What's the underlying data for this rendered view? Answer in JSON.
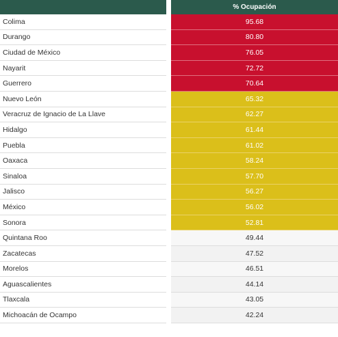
{
  "header": {
    "left_label": "",
    "right_label": "% Ocupación"
  },
  "colors": {
    "header_bg": "#2b5a4c",
    "red": "#c8102e",
    "yellow": "#dbbf1a",
    "gray": "#f2f2f2"
  },
  "rows": [
    {
      "state": "Colima",
      "value": "95.68",
      "level": "red"
    },
    {
      "state": "Durango",
      "value": "80.80",
      "level": "red"
    },
    {
      "state": "Ciudad de México",
      "value": "76.05",
      "level": "red"
    },
    {
      "state": "Nayarit",
      "value": "72.72",
      "level": "red"
    },
    {
      "state": "Guerrero",
      "value": "70.64",
      "level": "red"
    },
    {
      "state": "Nuevo León",
      "value": "65.32",
      "level": "yellow"
    },
    {
      "state": "Veracruz de Ignacio de La Llave",
      "value": "62.27",
      "level": "yellow"
    },
    {
      "state": "Hidalgo",
      "value": "61.44",
      "level": "yellow"
    },
    {
      "state": "Puebla",
      "value": "61.02",
      "level": "yellow"
    },
    {
      "state": "Oaxaca",
      "value": "58.24",
      "level": "yellow"
    },
    {
      "state": "Sinaloa",
      "value": "57.70",
      "level": "yellow"
    },
    {
      "state": "Jalisco",
      "value": "56.27",
      "level": "yellow"
    },
    {
      "state": "México",
      "value": "56.02",
      "level": "yellow"
    },
    {
      "state": "Sonora",
      "value": "52.81",
      "level": "yellow"
    },
    {
      "state": "Quintana Roo",
      "value": "49.44",
      "level": "gray"
    },
    {
      "state": "Zacatecas",
      "value": "47.52",
      "level": "gray"
    },
    {
      "state": "Morelos",
      "value": "46.51",
      "level": "gray"
    },
    {
      "state": "Aguascalientes",
      "value": "44.14",
      "level": "gray"
    },
    {
      "state": "Tlaxcala",
      "value": "43.05",
      "level": "gray"
    },
    {
      "state": "Michoacán de Ocampo",
      "value": "42.24",
      "level": "gray"
    }
  ]
}
